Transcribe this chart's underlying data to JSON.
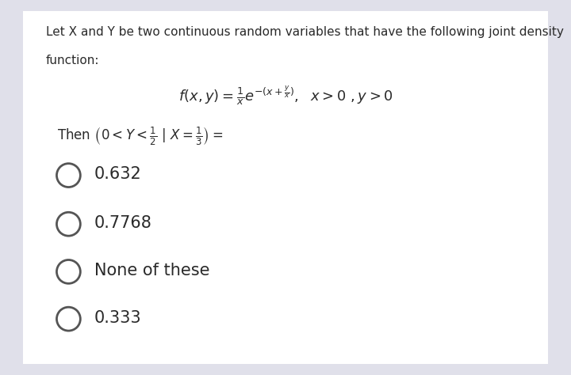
{
  "bg_color": "#e0e0ea",
  "card_color": "#ffffff",
  "title_line1": "Let X and Y be two continuous random variables that have the following joint density",
  "title_line2": "function:",
  "options": [
    "0.632",
    "0.7768",
    "None of these",
    "0.333"
  ],
  "text_color": "#2a2a2a",
  "circle_color": "#555555",
  "title_fontsize": 11.0,
  "option_fontsize": 15,
  "condition_fontsize": 12,
  "formula_fontsize": 13
}
